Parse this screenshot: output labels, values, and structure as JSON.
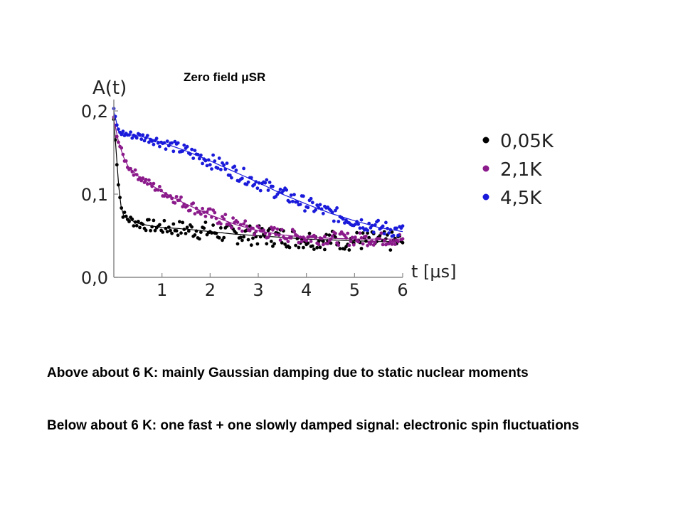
{
  "slide": {
    "title": "Zero field μSR",
    "notes": [
      "Above about 6 K: mainly Gaussian damping due to static nuclear moments",
      "Below about 6 K: one fast + one slowly damped signal: electronic spin fluctuations"
    ]
  },
  "chart_data": {
    "type": "scatter",
    "title": "",
    "xlabel": "t [μs]",
    "ylabel": "A(t)",
    "xlim": [
      0,
      6
    ],
    "ylim": [
      0,
      0.2
    ],
    "x_ticks": [
      "1",
      "2",
      "3",
      "4",
      "5",
      "6"
    ],
    "y_ticks": [
      "0,0",
      "0,1",
      "0,2"
    ],
    "legend_position": "right",
    "series": [
      {
        "name": "0,05K",
        "color": "#000000",
        "x": [
          0.0,
          0.05,
          0.1,
          0.15,
          0.2,
          0.3,
          0.5,
          0.75,
          1.0,
          1.5,
          2.0,
          2.5,
          3.0,
          3.5,
          4.0,
          4.5,
          5.0,
          5.5,
          6.0
        ],
        "y": [
          0.19,
          0.15,
          0.11,
          0.085,
          0.075,
          0.07,
          0.065,
          0.062,
          0.06,
          0.058,
          0.055,
          0.052,
          0.05,
          0.048,
          0.046,
          0.045,
          0.044,
          0.043,
          0.043
        ]
      },
      {
        "name": "2,1K",
        "color": "#8b1a8b",
        "x": [
          0.0,
          0.1,
          0.2,
          0.3,
          0.5,
          0.75,
          1.0,
          1.5,
          2.0,
          2.5,
          3.0,
          3.5,
          4.0,
          4.5,
          5.0,
          5.5,
          6.0
        ],
        "y": [
          0.19,
          0.162,
          0.145,
          0.133,
          0.122,
          0.112,
          0.103,
          0.088,
          0.075,
          0.064,
          0.056,
          0.051,
          0.048,
          0.047,
          0.046,
          0.046,
          0.046
        ]
      },
      {
        "name": "4,5K",
        "color": "#1a1adb",
        "x": [
          0.0,
          0.1,
          0.25,
          0.5,
          0.75,
          1.0,
          1.5,
          2.0,
          2.5,
          3.0,
          3.5,
          4.0,
          4.5,
          5.0,
          5.5,
          6.0
        ],
        "y": [
          0.2,
          0.175,
          0.172,
          0.17,
          0.167,
          0.162,
          0.152,
          0.14,
          0.127,
          0.114,
          0.1,
          0.088,
          0.077,
          0.068,
          0.06,
          0.055
        ]
      }
    ]
  }
}
